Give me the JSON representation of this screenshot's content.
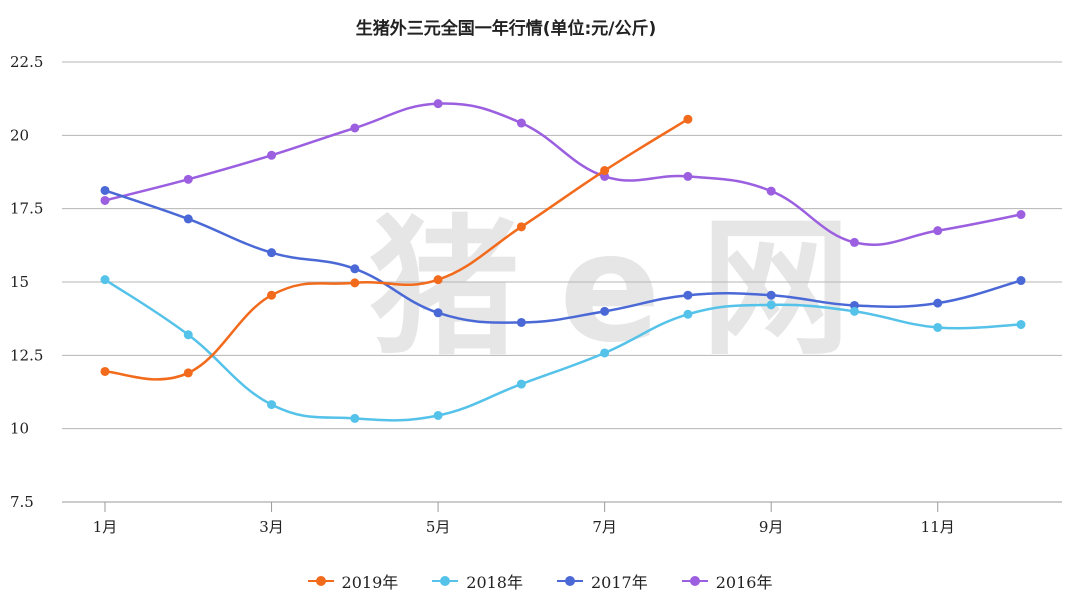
{
  "chart_data": {
    "type": "line",
    "title": "生猪外三元全国一年行情(单位:元/公斤)",
    "watermark": "猪e网",
    "x": [
      1,
      2,
      3,
      4,
      5,
      6,
      7,
      8,
      9,
      10,
      11,
      12
    ],
    "x_ticks": [
      1,
      3,
      5,
      7,
      9,
      11
    ],
    "x_tick_labels": [
      "1月",
      "3月",
      "5月",
      "7月",
      "9月",
      "11月"
    ],
    "ylim": [
      7.5,
      22.5
    ],
    "y_ticks": [
      "7.5",
      "10",
      "12.5",
      "15",
      "17.5",
      "20",
      "22.5"
    ],
    "grid": true,
    "legend_position": "bottom",
    "series": [
      {
        "name": "2019年",
        "color": "#f26a1b",
        "values": [
          11.95,
          11.9,
          14.55,
          14.97,
          15.08,
          16.88,
          18.8,
          20.55,
          null,
          null,
          null,
          null
        ]
      },
      {
        "name": "2018年",
        "color": "#55c2ea",
        "values": [
          15.08,
          13.2,
          10.82,
          10.35,
          10.45,
          11.52,
          12.58,
          13.9,
          14.22,
          14.0,
          13.45,
          13.55
        ]
      },
      {
        "name": "2017年",
        "color": "#4b69d6",
        "values": [
          18.12,
          17.15,
          16.0,
          15.45,
          13.95,
          13.62,
          14.0,
          14.55,
          14.55,
          14.2,
          14.28,
          15.05
        ]
      },
      {
        "name": "2016年",
        "color": "#9b5fe0",
        "values": [
          17.78,
          18.5,
          19.32,
          20.25,
          21.08,
          20.42,
          18.6,
          18.6,
          18.1,
          16.35,
          16.75,
          17.3
        ]
      }
    ]
  }
}
